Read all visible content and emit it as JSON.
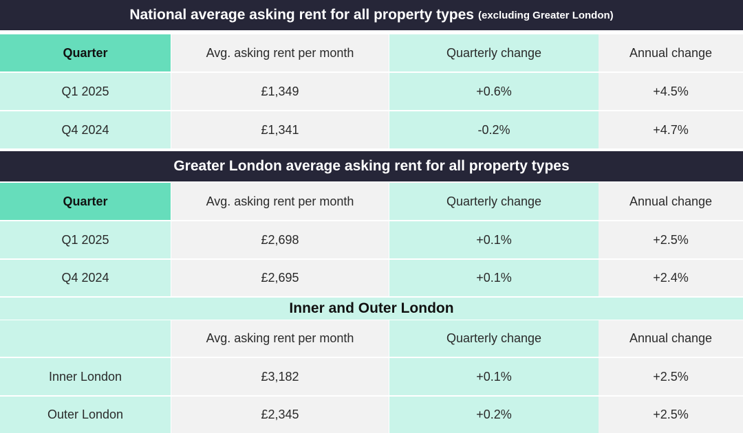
{
  "national": {
    "title": "National average asking rent for all property types",
    "title_suffix": "(excluding Greater London)",
    "headers": [
      "Quarter",
      "Avg. asking rent per month",
      "Quarterly change",
      "Annual change"
    ],
    "rows": [
      [
        "Q1 2025",
        "£1,349",
        "+0.6%",
        "+4.5%"
      ],
      [
        "Q4 2024",
        "£1,341",
        "-0.2%",
        "+4.7%"
      ]
    ]
  },
  "greater_london": {
    "title": "Greater London average asking rent for all property types",
    "headers": [
      "Quarter",
      "Avg. asking rent per month",
      "Quarterly change",
      "Annual change"
    ],
    "rows": [
      [
        "Q1 2025",
        "£2,698",
        "+0.1%",
        "+2.5%"
      ],
      [
        "Q4 2024",
        "£2,695",
        "+0.1%",
        "+2.4%"
      ]
    ]
  },
  "inner_outer": {
    "title": "Inner and Outer London",
    "headers": [
      "",
      "Avg. asking rent per month",
      "Quarterly change",
      "Annual change"
    ],
    "rows": [
      [
        "Inner London",
        "£3,182",
        "+0.1%",
        "+2.5%"
      ],
      [
        "Outer London",
        "£2,345",
        "+0.2%",
        "+2.5%"
      ]
    ]
  },
  "colors": {
    "banner": "#262638",
    "mint": "#c9f4e9",
    "quarter_header": "#66ddbb",
    "grey": "#f2f2f2"
  }
}
